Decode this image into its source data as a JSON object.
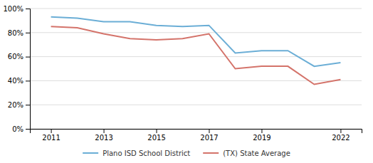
{
  "chart_data": {
    "type": "line",
    "x": [
      2011,
      2012,
      2013,
      2014,
      2015,
      2016,
      2017,
      2018,
      2019,
      2020,
      2021,
      2022
    ],
    "series": [
      {
        "name": "Plano ISD  School District",
        "color": "#6baed6",
        "values": [
          0.93,
          0.92,
          0.89,
          0.89,
          0.86,
          0.85,
          0.86,
          0.63,
          0.65,
          0.65,
          0.52,
          0.55
        ]
      },
      {
        "name": "(TX) State Average",
        "color": "#d4736a",
        "values": [
          0.85,
          0.84,
          0.79,
          0.75,
          0.74,
          0.75,
          0.79,
          0.5,
          0.52,
          0.52,
          0.37,
          0.41
        ]
      }
    ],
    "xlim": [
      2010.2,
      2022.8
    ],
    "xticks": [
      2011,
      2013,
      2015,
      2017,
      2019,
      2022
    ],
    "ylim": [
      0,
      1.0
    ],
    "yticks": [
      {
        "value": 0.0,
        "label": "0%"
      },
      {
        "value": 0.2,
        "label": "20%"
      },
      {
        "value": 0.4,
        "label": "40%"
      },
      {
        "value": 0.6,
        "label": "60%"
      },
      {
        "value": 0.8,
        "label": "80%"
      },
      {
        "value": 1.0,
        "label": "100%"
      }
    ],
    "grid": true,
    "legend": "bottom"
  }
}
